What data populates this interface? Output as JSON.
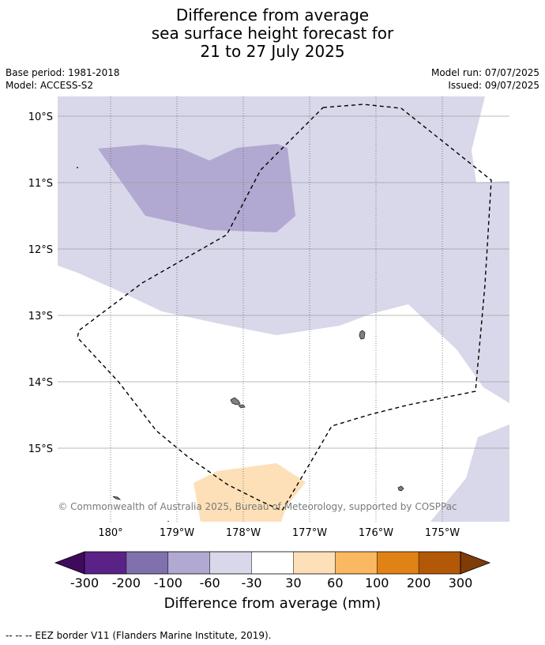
{
  "title_lines": [
    "Difference from average",
    "sea surface height forecast for",
    "21 to 27 July 2025"
  ],
  "meta": {
    "base_period": "Base period: 1981-2018",
    "model": "Model: ACCESS-S2",
    "model_run": "Model run: 07/07/2025",
    "issued": "Issued: 09/07/2025"
  },
  "map": {
    "lat_labels": [
      "10°S",
      "11°S",
      "12°S",
      "13°S",
      "14°S",
      "15°S"
    ],
    "lon_labels": [
      "180°",
      "179°W",
      "178°W",
      "177°W",
      "176°W",
      "175°W"
    ],
    "copyright": "© Commonwealth of Australia 2025, Bureau of Meteorology, supported by COSPPac"
  },
  "colorbar": {
    "title": "Difference from average (mm)",
    "tick_labels": [
      "-300",
      "-200",
      "-100",
      "-60",
      "-30",
      "30",
      "60",
      "100",
      "200",
      "300"
    ],
    "colors": [
      "#3f0a5c",
      "#5a2287",
      "#8070ad",
      "#b1a9d1",
      "#d8d8ea",
      "#ffffff",
      "#fde0b7",
      "#fbb862",
      "#e08214",
      "#b35806",
      "#7f3b08"
    ]
  },
  "footnote": "--  --  -- EEZ border V11 (Flanders Marine Institute, 2019)."
}
